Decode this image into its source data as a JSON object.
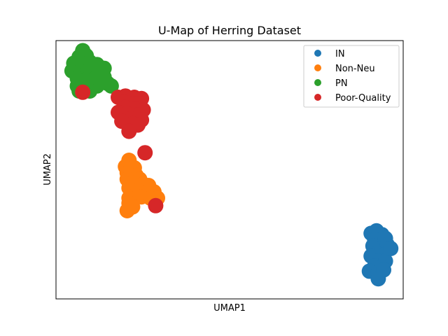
{
  "chart_data": {
    "type": "scatter",
    "title": "U-Map of Herring Dataset",
    "xlabel": "UMAP1",
    "ylabel": "UMAP2",
    "xlim": [
      -0.5,
      19.0
    ],
    "ylim": [
      -1.0,
      19.5
    ],
    "grid": false,
    "legend_position": "top-right",
    "series": [
      {
        "name": "IN",
        "color": "#1f77b4",
        "points": [
          [
            17.2,
            4.2
          ],
          [
            17.5,
            4.4
          ],
          [
            17.8,
            4.1
          ],
          [
            17.4,
            3.7
          ],
          [
            18.0,
            3.8
          ],
          [
            17.3,
            3.2
          ],
          [
            17.7,
            3.0
          ],
          [
            18.1,
            3.3
          ],
          [
            17.5,
            2.6
          ],
          [
            17.9,
            2.5
          ],
          [
            17.2,
            2.4
          ],
          [
            17.6,
            2.0
          ],
          [
            18.0,
            2.0
          ],
          [
            17.4,
            1.6
          ],
          [
            17.8,
            1.5
          ],
          [
            17.1,
            1.2
          ],
          [
            17.6,
            1.1
          ],
          [
            18.3,
            3.0
          ],
          [
            17.6,
            0.6
          ],
          [
            17.9,
            1.3
          ]
        ]
      },
      {
        "name": "Non-Neu",
        "color": "#ff7f0e",
        "points": [
          [
            3.6,
            10.0
          ],
          [
            3.4,
            9.5
          ],
          [
            3.9,
            9.4
          ],
          [
            3.5,
            9.0
          ],
          [
            4.0,
            8.8
          ],
          [
            3.5,
            8.5
          ],
          [
            4.2,
            8.5
          ],
          [
            3.8,
            8.2
          ],
          [
            4.4,
            8.1
          ],
          [
            4.7,
            8.0
          ],
          [
            3.6,
            7.8
          ],
          [
            4.1,
            7.6
          ],
          [
            4.6,
            7.5
          ],
          [
            5.0,
            7.5
          ],
          [
            3.6,
            7.0
          ],
          [
            4.3,
            7.1
          ],
          [
            3.6,
            6.6
          ],
          [
            4.8,
            7.0
          ],
          [
            3.8,
            6.3
          ],
          [
            3.5,
            6.0
          ],
          [
            5.2,
            7.0
          ]
        ]
      },
      {
        "name": "PN",
        "color": "#2ca02c",
        "points": [
          [
            1.0,
            18.7
          ],
          [
            0.8,
            18.2
          ],
          [
            1.2,
            18.3
          ],
          [
            0.5,
            17.7
          ],
          [
            0.9,
            17.6
          ],
          [
            1.4,
            17.8
          ],
          [
            1.8,
            17.6
          ],
          [
            0.4,
            17.1
          ],
          [
            0.8,
            17.0
          ],
          [
            1.3,
            17.1
          ],
          [
            1.8,
            17.2
          ],
          [
            2.2,
            17.3
          ],
          [
            0.7,
            16.5
          ],
          [
            1.2,
            16.4
          ],
          [
            1.7,
            16.5
          ],
          [
            2.2,
            16.6
          ],
          [
            2.4,
            16.1
          ],
          [
            0.7,
            15.9
          ],
          [
            1.2,
            15.8
          ],
          [
            1.8,
            15.9
          ],
          [
            2.6,
            15.9
          ],
          [
            0.8,
            15.5
          ],
          [
            1.4,
            15.5
          ]
        ]
      },
      {
        "name": "Poor-Quality",
        "color": "#d62728",
        "points": [
          [
            1.0,
            15.4
          ],
          [
            3.0,
            15.0
          ],
          [
            3.4,
            15.1
          ],
          [
            3.9,
            15.0
          ],
          [
            4.3,
            14.9
          ],
          [
            3.3,
            14.6
          ],
          [
            3.8,
            14.5
          ],
          [
            4.2,
            14.5
          ],
          [
            3.4,
            14.2
          ],
          [
            4.0,
            14.1
          ],
          [
            4.4,
            14.0
          ],
          [
            3.0,
            13.8
          ],
          [
            3.5,
            13.7
          ],
          [
            4.1,
            13.6
          ],
          [
            3.7,
            13.3
          ],
          [
            4.3,
            13.2
          ],
          [
            3.2,
            13.1
          ],
          [
            3.8,
            12.9
          ],
          [
            4.1,
            12.8
          ],
          [
            3.6,
            12.3
          ],
          [
            4.5,
            10.6
          ],
          [
            5.1,
            6.4
          ]
        ]
      }
    ]
  }
}
